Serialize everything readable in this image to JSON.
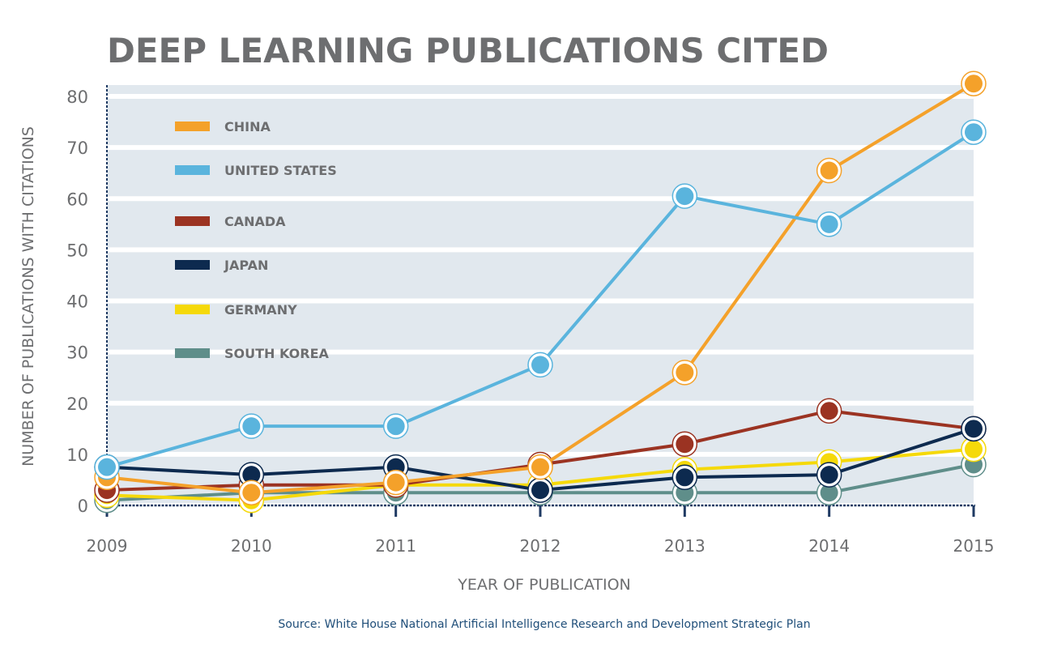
{
  "chart_data": {
    "type": "line",
    "title": "DEEP LEARNING PUBLICATIONS CITED",
    "xlabel": "YEAR OF PUBLICATION",
    "ylabel": "NUMBER OF PUBLICATIONS WITH CITATIONS",
    "x": [
      "2009",
      "2010",
      "2011",
      "2012",
      "2013",
      "2014",
      "2015"
    ],
    "ylim": [
      0,
      82
    ],
    "yticks": [
      "0",
      "10",
      "20",
      "30",
      "40",
      "50",
      "60",
      "70",
      "80"
    ],
    "ytick_values": [
      0,
      10,
      20,
      30,
      40,
      50,
      60,
      70,
      80
    ],
    "grid": "horizontal bands",
    "legend_placement": "top-left",
    "series": [
      {
        "name": "SOUTH KOREA",
        "color": "#5f8e8a",
        "values": [
          1,
          2.5,
          2.5,
          2.5,
          2.5,
          2.5,
          8
        ]
      },
      {
        "name": "GERMANY",
        "color": "#f5d90a",
        "values": [
          2,
          1,
          4,
          4,
          7,
          8.5,
          11
        ]
      },
      {
        "name": "CANADA",
        "color": "#9b3322",
        "values": [
          3,
          4,
          4,
          8,
          12,
          18.5,
          15
        ]
      },
      {
        "name": "JAPAN",
        "color": "#0d2a4f",
        "values": [
          7.5,
          6,
          7.5,
          3,
          5.5,
          6,
          15
        ]
      },
      {
        "name": "CHINA",
        "color": "#f4a12a",
        "values": [
          5.5,
          2.5,
          4.5,
          7.5,
          26,
          65.5,
          82.5
        ]
      },
      {
        "name": "UNITED STATES",
        "color": "#5ab4dd",
        "values": [
          7.5,
          15.5,
          15.5,
          27.5,
          60.5,
          55,
          73
        ]
      }
    ],
    "legend": [
      "CHINA",
      "UNITED STATES",
      "CANADA",
      "JAPAN",
      "GERMANY",
      "SOUTH KOREA"
    ]
  },
  "source": "Source: White House National Artificial Intelligence Research and Development Strategic Plan",
  "colors": {
    "band": "#e1e8ee",
    "axis": "#1f3a63",
    "text": "#6d6e70",
    "source": "#1f4e79"
  }
}
